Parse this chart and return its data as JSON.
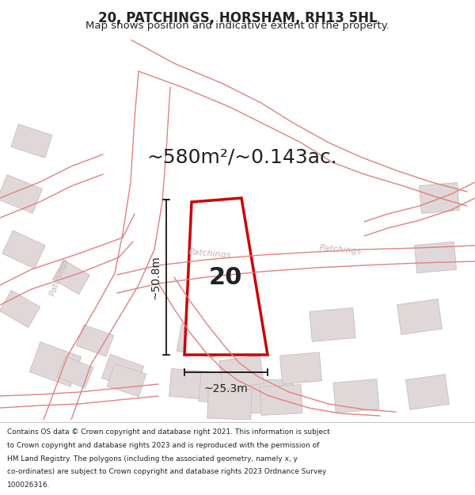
{
  "title": "20, PATCHINGS, HORSHAM, RH13 5HL",
  "subtitle": "Map shows position and indicative extent of the property.",
  "area_text": "~580m²/~0.143ac.",
  "label_20": "20",
  "dim_height": "~50.8m",
  "dim_width": "~25.3m",
  "map_bg": "#f7f0f0",
  "road_line_color": "#e08080",
  "building_color": "#e0d8d8",
  "building_edge": "#d0c0c0",
  "plot_edge_color": "#cc0000",
  "plot_fill": "#ffffff",
  "dim_line_color": "#000000",
  "road_label_color": "#c8b0b0",
  "street_name": "Patchings",
  "footer_lines": [
    "Contains OS data © Crown copyright and database right 2021. This information is subject",
    "to Crown copyright and database rights 2023 and is reproduced with the permission of",
    "HM Land Registry. The polygons (including the associated geometry, namely x, y",
    "co-ordinates) are subject to Crown copyright and database rights 2023 Ordnance Survey",
    "100026316."
  ],
  "title_fontsize": 12,
  "subtitle_fontsize": 9.5,
  "area_fontsize": 18,
  "label_fontsize": 22,
  "dim_fontsize": 10,
  "road_label_fontsize": 8,
  "footer_fontsize": 6.5
}
